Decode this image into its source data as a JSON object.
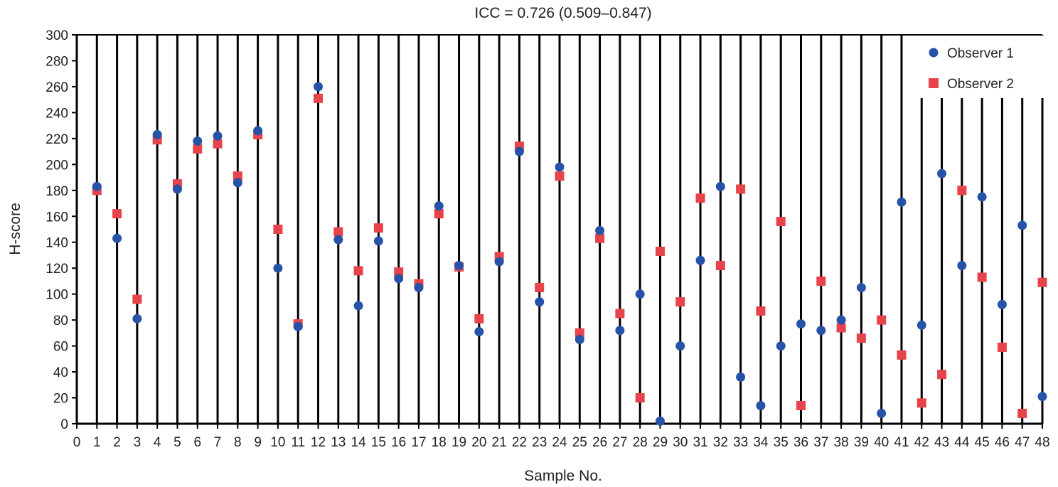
{
  "chart_data": {
    "type": "scatter",
    "title": "ICC = 0.726 (0.509–0.847)",
    "xlabel": "Sample No.",
    "ylabel": "H-score",
    "xlim": [
      0,
      48
    ],
    "ylim": [
      0,
      300
    ],
    "x_ticks": [
      0,
      1,
      2,
      3,
      4,
      5,
      6,
      7,
      8,
      9,
      10,
      11,
      12,
      13,
      14,
      15,
      16,
      17,
      18,
      19,
      20,
      21,
      22,
      23,
      24,
      25,
      26,
      27,
      28,
      29,
      30,
      31,
      32,
      33,
      34,
      35,
      36,
      37,
      38,
      39,
      40,
      41,
      42,
      43,
      44,
      45,
      46,
      47,
      48
    ],
    "y_ticks": [
      0,
      20,
      40,
      60,
      80,
      100,
      120,
      140,
      160,
      180,
      200,
      220,
      240,
      260,
      280,
      300
    ],
    "vertical_lines_at_samples": true,
    "legend_position": "top-right",
    "x": [
      1,
      2,
      3,
      4,
      5,
      6,
      7,
      8,
      9,
      10,
      11,
      12,
      13,
      14,
      15,
      16,
      17,
      18,
      19,
      20,
      21,
      22,
      23,
      24,
      25,
      26,
      27,
      28,
      29,
      30,
      31,
      32,
      33,
      34,
      35,
      36,
      37,
      38,
      39,
      40,
      41,
      42,
      43,
      44,
      45,
      46,
      47,
      48
    ],
    "series": [
      {
        "name": "Observer 1",
        "marker": "circle",
        "color": "#2653a8",
        "values": [
          183,
          143,
          81,
          223,
          181,
          218,
          222,
          186,
          226,
          120,
          75,
          260,
          142,
          91,
          141,
          112,
          105,
          168,
          122,
          71,
          125,
          210,
          94,
          198,
          65,
          149,
          72,
          100,
          2,
          60,
          126,
          183,
          36,
          14,
          60,
          77,
          72,
          80,
          105,
          8,
          171,
          76,
          193,
          122,
          175,
          92,
          153,
          21
        ]
      },
      {
        "name": "Observer 2",
        "marker": "square",
        "color": "#e8434a",
        "values": [
          180,
          162,
          96,
          219,
          185,
          212,
          216,
          191,
          223,
          150,
          77,
          251,
          148,
          118,
          151,
          117,
          108,
          162,
          121,
          81,
          129,
          214,
          105,
          191,
          70,
          143,
          85,
          20,
          133,
          94,
          174,
          122,
          181,
          87,
          156,
          14,
          110,
          74,
          66,
          80,
          53,
          16,
          38,
          180,
          113,
          59,
          8,
          109
        ]
      }
    ]
  }
}
